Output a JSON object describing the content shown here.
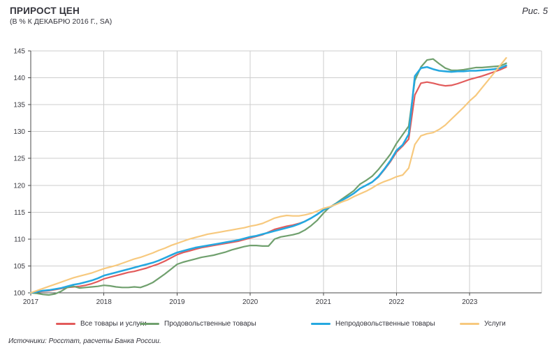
{
  "header": {
    "title": "ПРИРОСТ ЦЕН",
    "subtitle": "(В % К ДЕКАБРЮ 2016 Г., SA)",
    "figure_label": "Рис. 5"
  },
  "footer": {
    "source": "Источники: Росстат, расчеты Банка России."
  },
  "chart_data": {
    "type": "line",
    "title": "ПРИРОСТ ЦЕН (В % К ДЕКАБРЮ 2016 Г., SA)",
    "xlabel": "",
    "ylabel": "",
    "ylim": [
      100,
      145
    ],
    "y_ticks": [
      100,
      105,
      110,
      115,
      120,
      125,
      130,
      135,
      140,
      145
    ],
    "x_tick_labels": [
      "2017",
      "2018",
      "2019",
      "2020",
      "2021",
      "2022",
      "2023"
    ],
    "x_start": "Dec 2016",
    "x_frequency": "monthly",
    "grid": true,
    "legend_position": "bottom",
    "axis_color": "#4a4a4a",
    "grid_color": "#cdcdcd",
    "series": [
      {
        "name": "Все товары и услуги",
        "color": "#e25b5b",
        "values": [
          100.0,
          100.2,
          100.3,
          100.4,
          100.6,
          100.8,
          101.0,
          101.1,
          101.2,
          101.4,
          101.7,
          102.1,
          102.6,
          102.9,
          103.2,
          103.5,
          103.8,
          104.0,
          104.3,
          104.6,
          105.0,
          105.4,
          105.9,
          106.5,
          107.1,
          107.5,
          107.8,
          108.1,
          108.4,
          108.6,
          108.8,
          109.0,
          109.2,
          109.4,
          109.6,
          109.9,
          110.2,
          110.5,
          110.8,
          111.3,
          111.8,
          112.1,
          112.4,
          112.6,
          112.9,
          113.3,
          113.9,
          114.6,
          115.4,
          115.9,
          116.5,
          117.2,
          117.8,
          118.5,
          119.4,
          120.0,
          120.6,
          121.5,
          122.9,
          124.4,
          126.2,
          127.3,
          128.6,
          136.8,
          139.0,
          139.2,
          139.0,
          138.7,
          138.5,
          138.6,
          138.9,
          139.3,
          139.7,
          140.0,
          140.3,
          140.7,
          141.1,
          141.5,
          142.0
        ]
      },
      {
        "name": "Продовольственные товары",
        "color": "#70a06e",
        "values": [
          100.0,
          99.9,
          99.7,
          99.6,
          99.8,
          100.3,
          101.0,
          101.2,
          100.9,
          101.0,
          101.1,
          101.2,
          101.4,
          101.3,
          101.1,
          101.0,
          101.0,
          101.1,
          101.0,
          101.4,
          101.9,
          102.7,
          103.5,
          104.4,
          105.3,
          105.7,
          106.0,
          106.3,
          106.6,
          106.8,
          107.0,
          107.3,
          107.6,
          108.0,
          108.3,
          108.6,
          108.8,
          108.8,
          108.7,
          108.7,
          110.0,
          110.4,
          110.6,
          110.8,
          111.1,
          111.7,
          112.5,
          113.5,
          114.8,
          115.9,
          116.6,
          117.4,
          118.2,
          119.0,
          120.2,
          120.9,
          121.7,
          122.9,
          124.3,
          125.8,
          127.8,
          129.4,
          131.0,
          139.5,
          142.0,
          143.3,
          143.5,
          142.6,
          141.8,
          141.4,
          141.4,
          141.5,
          141.7,
          141.9,
          141.9,
          142.0,
          142.1,
          142.2,
          142.7
        ]
      },
      {
        "name": "Непродовольственные товары",
        "color": "#25a8e0",
        "values": [
          100.0,
          100.2,
          100.4,
          100.5,
          100.7,
          100.9,
          101.2,
          101.5,
          101.7,
          102.0,
          102.3,
          102.7,
          103.2,
          103.5,
          103.8,
          104.1,
          104.4,
          104.7,
          105.0,
          105.3,
          105.6,
          106.0,
          106.5,
          107.0,
          107.5,
          107.8,
          108.1,
          108.4,
          108.6,
          108.8,
          109.0,
          109.2,
          109.4,
          109.6,
          109.8,
          110.1,
          110.4,
          110.6,
          110.9,
          111.2,
          111.5,
          111.8,
          112.1,
          112.4,
          112.8,
          113.3,
          113.9,
          114.6,
          115.4,
          115.9,
          116.5,
          117.2,
          117.8,
          118.5,
          119.4,
          120.0,
          120.6,
          121.6,
          123.0,
          124.6,
          126.5,
          127.5,
          129.5,
          140.3,
          141.8,
          142.0,
          141.6,
          141.3,
          141.2,
          141.1,
          141.2,
          141.2,
          141.3,
          141.3,
          141.4,
          141.5,
          141.6,
          141.8,
          142.3
        ]
      },
      {
        "name": "Услуги",
        "color": "#f7c97e",
        "values": [
          100.0,
          100.4,
          100.8,
          101.2,
          101.6,
          102.0,
          102.4,
          102.8,
          103.1,
          103.4,
          103.7,
          104.1,
          104.5,
          104.8,
          105.1,
          105.5,
          105.9,
          106.3,
          106.6,
          107.0,
          107.4,
          107.9,
          108.3,
          108.8,
          109.2,
          109.6,
          110.0,
          110.3,
          110.6,
          110.9,
          111.1,
          111.3,
          111.5,
          111.7,
          111.9,
          112.1,
          112.4,
          112.6,
          112.9,
          113.4,
          113.9,
          114.2,
          114.4,
          114.3,
          114.3,
          114.5,
          114.8,
          115.2,
          115.7,
          116.0,
          116.4,
          116.9,
          117.3,
          117.9,
          118.4,
          118.9,
          119.5,
          120.2,
          120.7,
          121.1,
          121.6,
          121.9,
          123.2,
          127.6,
          129.2,
          129.6,
          129.8,
          130.4,
          131.2,
          132.3,
          133.4,
          134.5,
          135.7,
          136.7,
          138.1,
          139.5,
          140.9,
          142.3,
          143.7
        ]
      }
    ]
  }
}
